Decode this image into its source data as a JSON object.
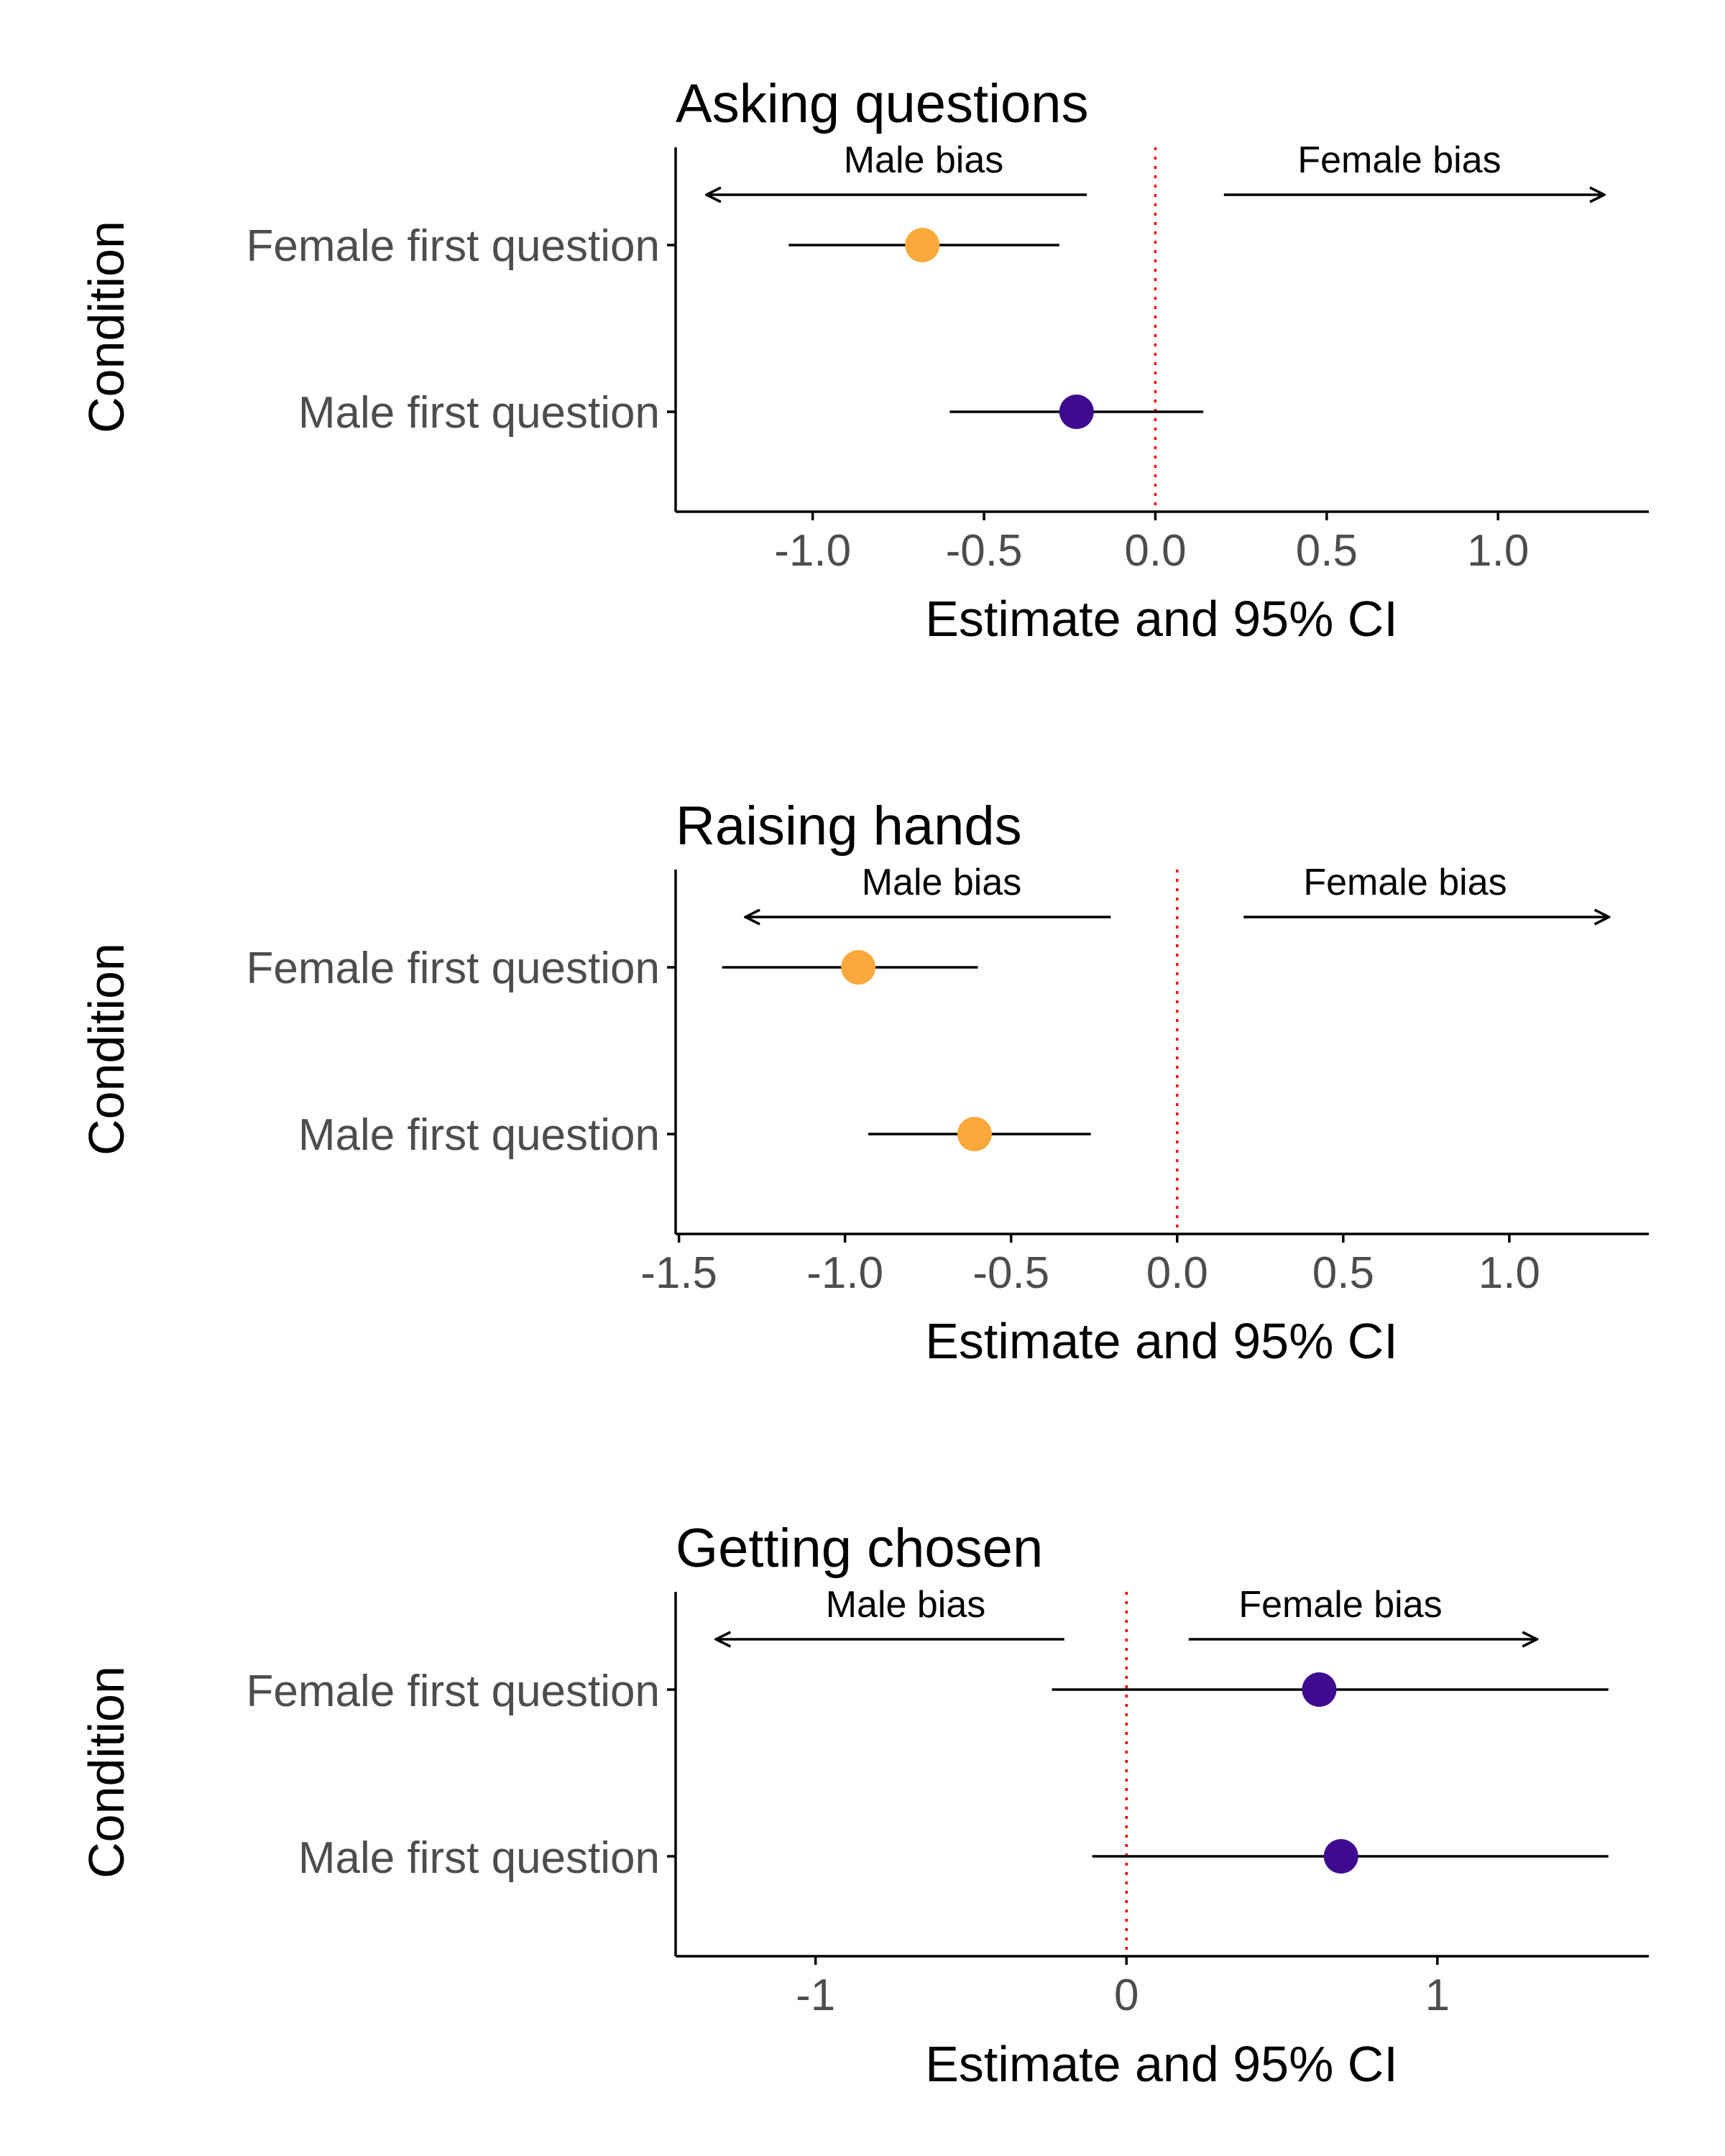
{
  "colors": {
    "female_first": "#f9a93a",
    "male_first": "#3f0a8f",
    "reference_line": "#ff0000",
    "ink": "#000000",
    "tick_text": "#4d4d4d"
  },
  "chart_data": [
    {
      "type": "scatter",
      "subtype": "forest-plot",
      "title": "Asking questions",
      "xlabel": "Estimate and 95% CI",
      "ylabel": "Condition",
      "xlim": [
        -1.4,
        1.44
      ],
      "xticks": [
        -1.0,
        -0.5,
        0.0,
        0.5,
        1.0
      ],
      "xtick_labels": [
        "-1.0",
        "-0.5",
        "0.0",
        "0.5",
        "1.0"
      ],
      "reference_x": 0,
      "annotations": {
        "left": "Male bias",
        "right": "Female bias",
        "left_arrow": [
          -0.2,
          -1.31
        ],
        "right_arrow": [
          0.2,
          1.31
        ]
      },
      "categories": [
        "Female first question",
        "Male first question"
      ],
      "estimates": [
        {
          "condition": "Female first question",
          "estimate": -0.68,
          "ci_low": -1.07,
          "ci_high": -0.28,
          "color": "#f9a93a"
        },
        {
          "condition": "Male first question",
          "estimate": -0.23,
          "ci_low": -0.6,
          "ci_high": 0.14,
          "color": "#3f0a8f"
        }
      ]
    },
    {
      "type": "scatter",
      "subtype": "forest-plot",
      "title": "Raising hands",
      "xlabel": "Estimate and 95% CI",
      "ylabel": "Condition",
      "xlim": [
        -1.51,
        1.42
      ],
      "xticks": [
        -1.5,
        -1.0,
        -0.5,
        0.0,
        0.5,
        1.0
      ],
      "xtick_labels": [
        "-1.5",
        "-1.0",
        "-0.5",
        "0.0",
        "0.5",
        "1.0"
      ],
      "reference_x": 0,
      "annotations": {
        "left": "Male bias",
        "right": "Female bias",
        "left_arrow": [
          -0.2,
          -1.3
        ],
        "right_arrow": [
          0.2,
          1.3
        ]
      },
      "categories": [
        "Female first question",
        "Male first question"
      ],
      "estimates": [
        {
          "condition": "Female first question",
          "estimate": -0.96,
          "ci_low": -1.37,
          "ci_high": -0.6,
          "color": "#f9a93a"
        },
        {
          "condition": "Male first question",
          "estimate": -0.61,
          "ci_low": -0.93,
          "ci_high": -0.26,
          "color": "#f9a93a"
        }
      ]
    },
    {
      "type": "scatter",
      "subtype": "forest-plot",
      "title": "Getting chosen",
      "xlabel": "Estimate and 95% CI",
      "ylabel": "Condition",
      "xlim": [
        -1.45,
        1.68
      ],
      "xticks": [
        -1,
        0,
        1
      ],
      "xtick_labels": [
        "-1",
        "0",
        "1"
      ],
      "reference_x": 0,
      "annotations": {
        "left": "Male bias",
        "right": "Female bias",
        "left_arrow": [
          -0.2,
          -1.32
        ],
        "right_arrow": [
          0.2,
          1.32
        ]
      },
      "categories": [
        "Female first question",
        "Male first question"
      ],
      "estimates": [
        {
          "condition": "Female first question",
          "estimate": 0.62,
          "ci_low": -0.24,
          "ci_high": 1.55,
          "color": "#3f0a8f"
        },
        {
          "condition": "Male first question",
          "estimate": 0.69,
          "ci_low": -0.11,
          "ci_high": 1.55,
          "color": "#3f0a8f"
        }
      ]
    }
  ]
}
